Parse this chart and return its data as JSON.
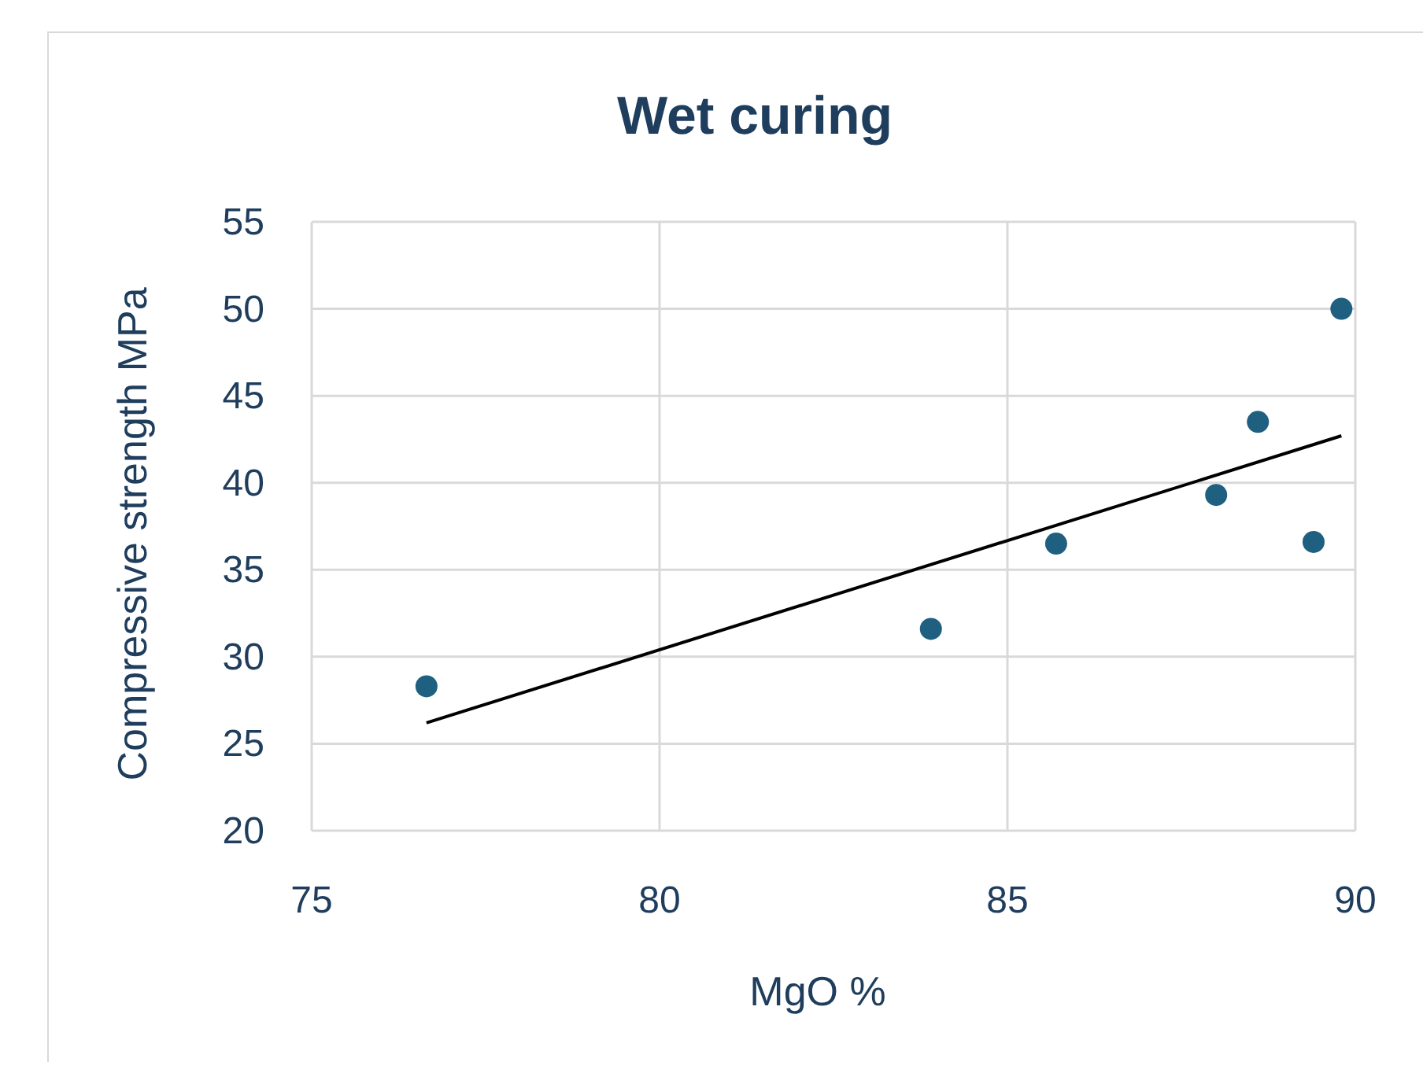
{
  "chart_data": {
    "type": "scatter",
    "title": "Wet curing",
    "xlabel": "MgO %",
    "ylabel": "Compressive strength MPa",
    "xlim": [
      75,
      90
    ],
    "xticks": [
      75,
      80,
      85,
      90
    ],
    "ylim": [
      20,
      55
    ],
    "yticks": [
      20,
      25,
      30,
      35,
      40,
      45,
      50,
      55
    ],
    "grid": true,
    "marker": "circle",
    "series": [
      {
        "color": "#1f5f80",
        "x": [
          76.65,
          83.9,
          85.7,
          88.0,
          88.6,
          89.4,
          89.8
        ],
        "values": [
          28.3,
          31.6,
          36.5,
          39.3,
          43.5,
          36.6,
          50.0
        ]
      },
      {
        "type": "line",
        "color": "#000000",
        "x": [
          76.65,
          89.8
        ],
        "values": [
          26.2,
          42.7
        ],
        "marker": "none",
        "line_style": "solid"
      }
    ]
  }
}
